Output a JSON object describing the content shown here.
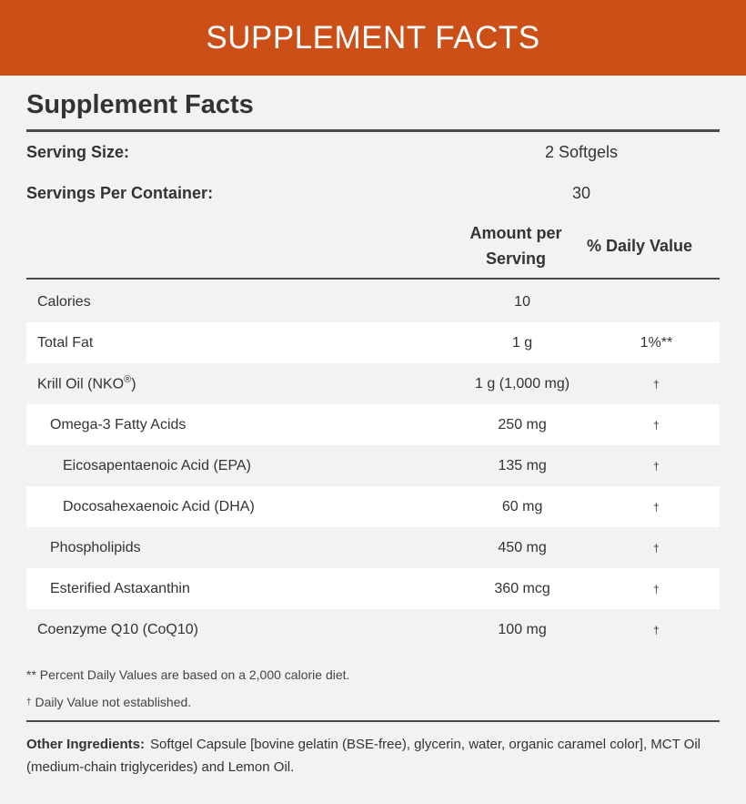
{
  "banner": {
    "title": "SUPPLEMENT FACTS"
  },
  "facts": {
    "title": "Supplement Facts",
    "serving_size_label": "Serving Size:",
    "serving_size_value": "2 Softgels",
    "servings_per_container_label": "Servings Per Container:",
    "servings_per_container_value": "30",
    "amount_header_line1": "Amount per",
    "amount_header_line2": "Serving",
    "dv_header": "% Daily Value",
    "rows": [
      {
        "name": "Calories",
        "amount": "10",
        "dv": ""
      },
      {
        "name": "Total Fat",
        "amount": "1 g",
        "dv": "1%**"
      },
      {
        "name": "Krill Oil (NKO",
        "name_sup": "®",
        "name_suffix": ")",
        "amount": "1 g (1,000 mg)",
        "dv": "†"
      },
      {
        "name": "Omega-3 Fatty Acids",
        "amount": "250 mg",
        "dv": "†"
      },
      {
        "name": "Eicosapentaenoic Acid (EPA)",
        "amount": "135 mg",
        "dv": "†"
      },
      {
        "name": "Docosahexaenoic Acid (DHA)",
        "amount": "60 mg",
        "dv": "†"
      },
      {
        "name": "Phospholipids",
        "amount": "450 mg",
        "dv": "†"
      },
      {
        "name": "Esterified Astaxanthin",
        "amount": "360 mcg",
        "dv": "†"
      },
      {
        "name": "Coenzyme Q10 (CoQ10)",
        "amount": "100 mg",
        "dv": "†"
      }
    ],
    "footnote_1": "** Percent Daily Values are based on a 2,000 calorie diet.",
    "footnote_2_symbol": "†",
    "footnote_2": " Daily Value not established.",
    "other_ingredients_label": "Other Ingredients:",
    "other_ingredients_text": "Softgel Capsule [bovine gelatin (BSE-free), glycerin, water, organic caramel color], MCT Oil (medium-chain triglycerides) and Lemon Oil."
  },
  "colors": {
    "banner": "#cc4f17",
    "background": "#f2f2f2",
    "alt_row": "#ffffff",
    "text": "#333333"
  }
}
